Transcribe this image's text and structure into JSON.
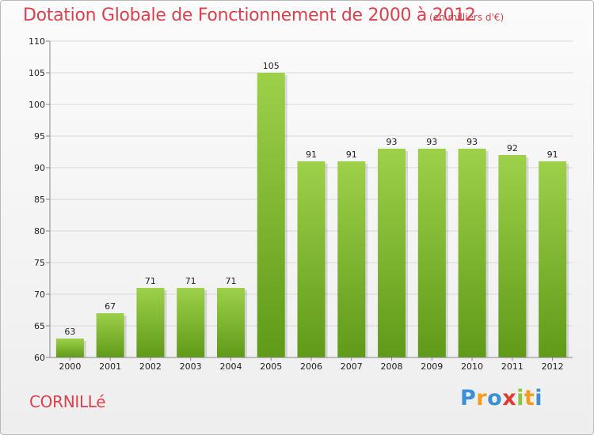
{
  "header": {
    "title": "Dotation Globale de Fonctionnement de 2000 à 2012",
    "unit": "(en milliers d'€)"
  },
  "footer": {
    "commune": "CORNILLé",
    "logo": {
      "letters": [
        "P",
        "r",
        "o",
        "x",
        "i",
        "t",
        "i"
      ],
      "colors": [
        "#3a8fd6",
        "#f39c1f",
        "#3a8fd6",
        "#e03c31",
        "#8cc63f",
        "#f39c1f",
        "#3a8fd6"
      ]
    }
  },
  "colors": {
    "bar_top": "#9ed04a",
    "bar_bottom": "#5f9a18",
    "axis": "#888888",
    "grid": "#d8d8d8",
    "text_accent": "#d9414e"
  },
  "chart_data": {
    "type": "bar",
    "categories": [
      "2000",
      "2001",
      "2002",
      "2003",
      "2004",
      "2005",
      "2006",
      "2007",
      "2008",
      "2009",
      "2010",
      "2011",
      "2012"
    ],
    "values": [
      63,
      67,
      71,
      71,
      71,
      105,
      91,
      91,
      93,
      93,
      93,
      92,
      91
    ],
    "title": "Dotation Globale de Fonctionnement de 2000 à 2012",
    "xlabel": "",
    "ylabel": "",
    "ylim": [
      60,
      110
    ],
    "yticks": [
      60,
      65,
      70,
      75,
      80,
      85,
      90,
      95,
      100,
      105,
      110
    ],
    "grid": true,
    "legend": "none"
  }
}
